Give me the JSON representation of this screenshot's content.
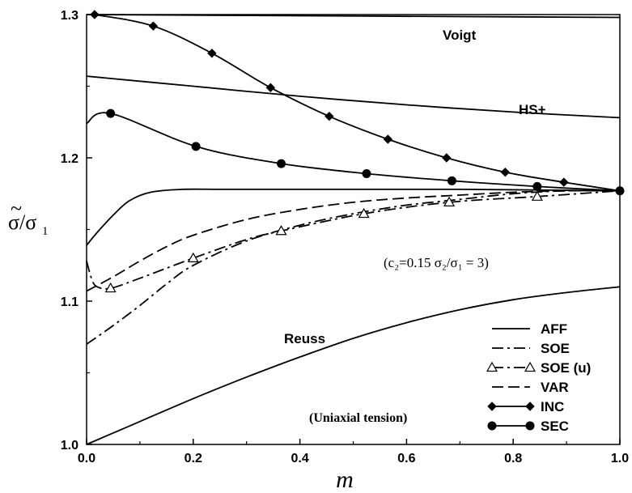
{
  "chart_data": {
    "type": "line",
    "xlabel": "m",
    "ylabel_main": "σ̃/σ",
    "ylabel_sub": "1",
    "xlim": [
      0.0,
      1.0
    ],
    "ylim": [
      1.0,
      1.3
    ],
    "x_ticks": [
      "0.0",
      "0.2",
      "0.4",
      "0.6",
      "0.8",
      "1.0"
    ],
    "y_ticks": [
      "1.0",
      "1.1",
      "1.2",
      "1.3"
    ],
    "grid": false,
    "legend_position": "bottom-right",
    "annotations": {
      "params": "(c₂=0.15   σ₂/σ₁ = 3)",
      "loading": "(Uniaxial tension)"
    },
    "bounds": [
      {
        "name": "Voigt",
        "x": [
          0.0,
          1.0
        ],
        "y": [
          1.3,
          1.298
        ]
      },
      {
        "name": "HS+",
        "x": [
          0.0,
          0.2,
          0.4,
          0.6,
          0.8,
          1.0
        ],
        "y": [
          1.257,
          1.25,
          1.243,
          1.237,
          1.232,
          1.228
        ]
      },
      {
        "name": "Reuss",
        "x": [
          0.0,
          0.1,
          0.2,
          0.3,
          0.4,
          0.5,
          0.6,
          0.7,
          0.8,
          0.9,
          1.0
        ],
        "y": [
          1.0,
          1.016,
          1.032,
          1.047,
          1.061,
          1.074,
          1.085,
          1.094,
          1.101,
          1.106,
          1.11
        ]
      }
    ],
    "series": [
      {
        "name": "AFF",
        "style": "solid",
        "marker": "none",
        "x": [
          0.0,
          0.02,
          0.05,
          0.08,
          0.12,
          0.18,
          0.25,
          0.35,
          0.5,
          0.7,
          1.0
        ],
        "y": [
          1.139,
          1.148,
          1.16,
          1.17,
          1.176,
          1.178,
          1.178,
          1.178,
          1.178,
          1.178,
          1.177
        ]
      },
      {
        "name": "SOE",
        "style": "dashdot",
        "marker": "none",
        "x": [
          0.0,
          0.05,
          0.1,
          0.15,
          0.2,
          0.3,
          0.4,
          0.5,
          0.6,
          0.7,
          0.8,
          0.9,
          1.0
        ],
        "y": [
          1.07,
          1.083,
          1.097,
          1.112,
          1.125,
          1.142,
          1.153,
          1.161,
          1.167,
          1.171,
          1.175,
          1.177,
          1.177
        ]
      },
      {
        "name": "SOE (u)",
        "style": "dashdot",
        "marker": "triangle-open",
        "x": [
          0.0,
          0.01,
          0.02,
          0.045,
          0.1,
          0.2,
          0.3,
          0.365,
          0.52,
          0.68,
          0.845,
          1.0
        ],
        "y": [
          1.128,
          1.115,
          1.11,
          1.109,
          1.116,
          1.13,
          1.143,
          1.149,
          1.161,
          1.169,
          1.173,
          1.177
        ],
        "marker_x": [
          0.045,
          0.2,
          0.365,
          0.52,
          0.68,
          0.845
        ]
      },
      {
        "name": "VAR",
        "style": "dashed",
        "marker": "none",
        "x": [
          0.0,
          0.05,
          0.1,
          0.15,
          0.2,
          0.3,
          0.4,
          0.5,
          0.6,
          0.7,
          0.8,
          0.9,
          1.0
        ],
        "y": [
          1.107,
          1.117,
          1.128,
          1.138,
          1.146,
          1.157,
          1.164,
          1.169,
          1.172,
          1.174,
          1.176,
          1.177,
          1.177
        ]
      },
      {
        "name": "INC",
        "style": "solid",
        "marker": "diamond-filled",
        "x": [
          0.015,
          0.125,
          0.235,
          0.345,
          0.455,
          0.565,
          0.675,
          0.785,
          0.895,
          1.0
        ],
        "y": [
          1.3,
          1.292,
          1.273,
          1.249,
          1.229,
          1.213,
          1.2,
          1.19,
          1.183,
          1.177
        ],
        "marker_x": [
          0.015,
          0.125,
          0.235,
          0.345,
          0.455,
          0.565,
          0.675,
          0.785,
          0.895,
          1.0
        ]
      },
      {
        "name": "SEC",
        "style": "solid",
        "marker": "circle-filled",
        "x": [
          0.0,
          0.045,
          0.205,
          0.365,
          0.525,
          0.685,
          0.845,
          1.0
        ],
        "y": [
          1.224,
          1.231,
          1.208,
          1.196,
          1.189,
          1.184,
          1.18,
          1.177
        ],
        "marker_x": [
          0.045,
          0.205,
          0.365,
          0.525,
          0.685,
          0.845,
          1.0
        ]
      }
    ]
  }
}
